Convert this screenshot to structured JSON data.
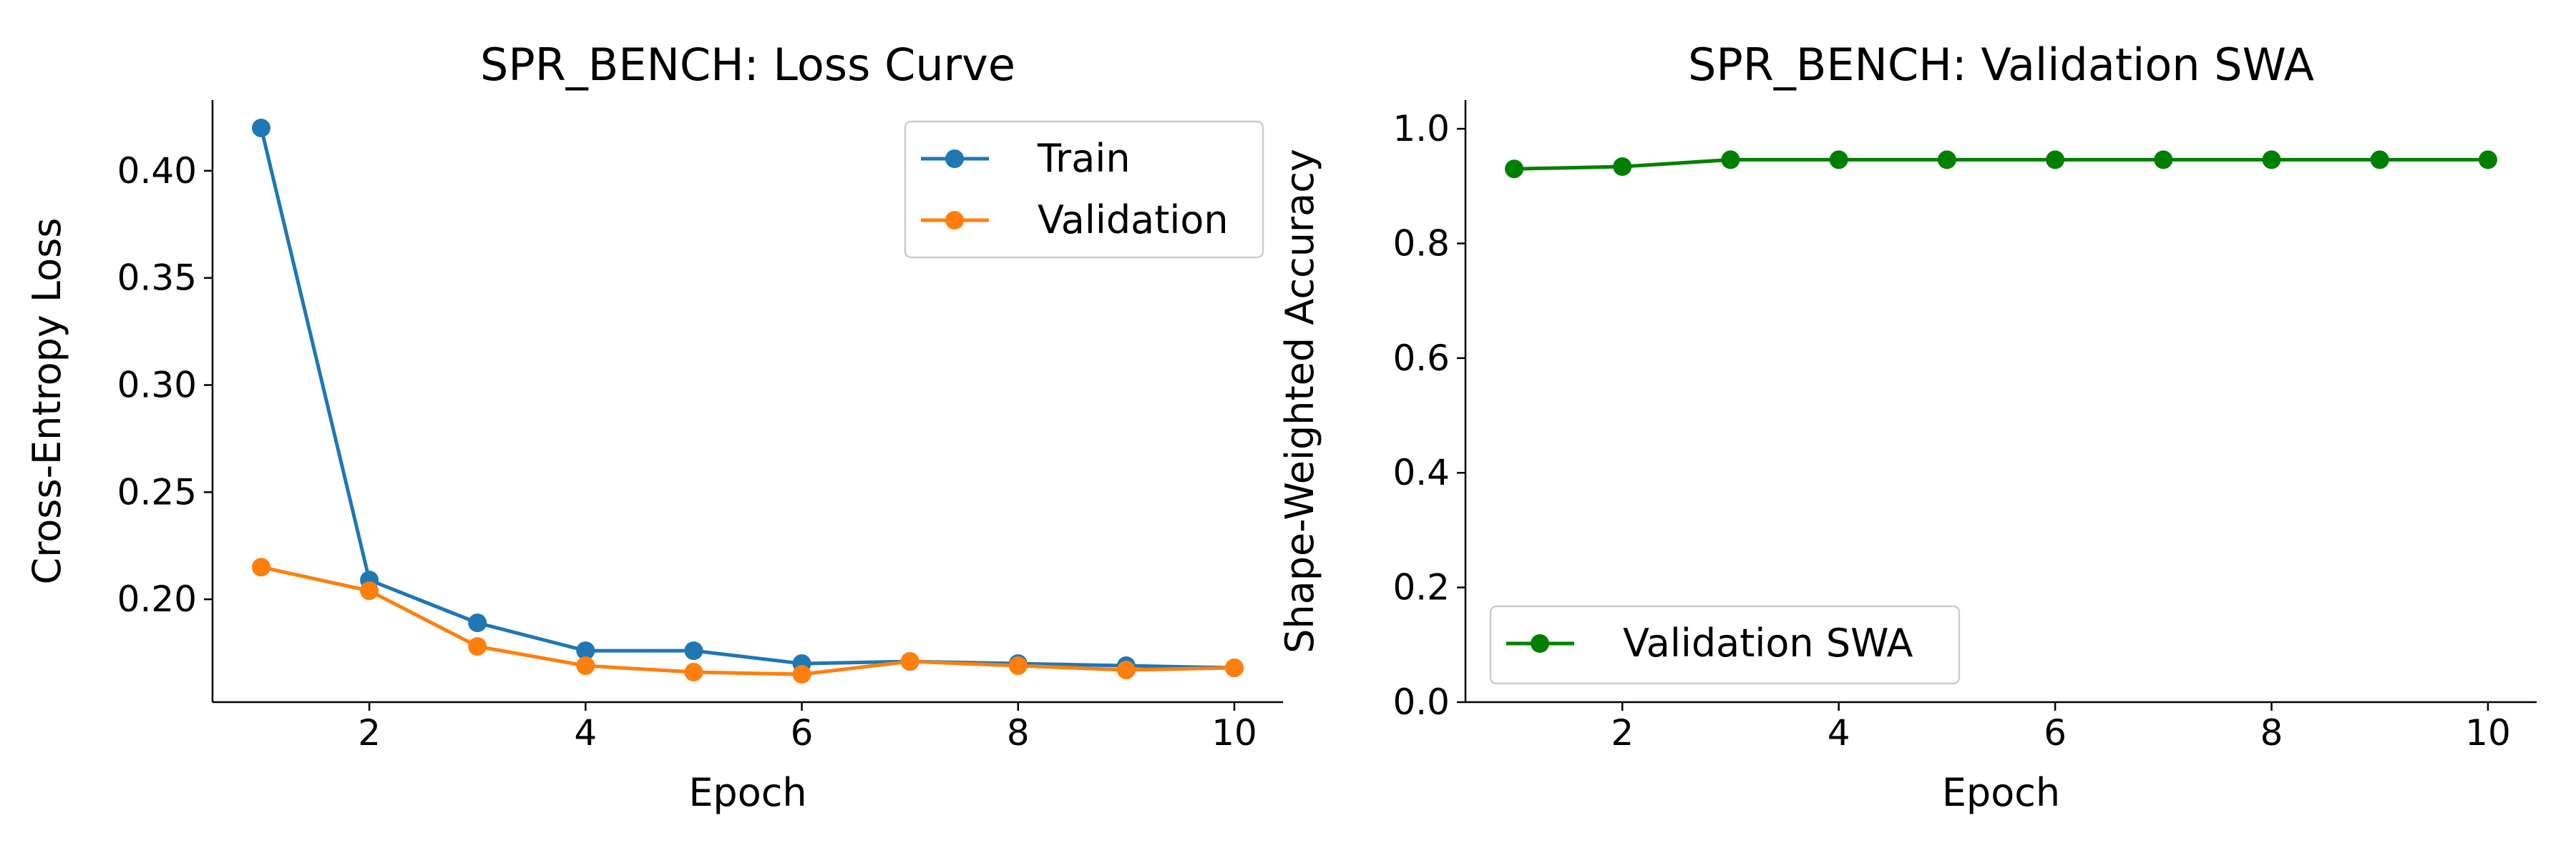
{
  "chart_data": [
    {
      "type": "line",
      "title": "SPR_BENCH: Loss Curve",
      "xlabel": "Epoch",
      "ylabel": "Cross-Entropy Loss",
      "xlim": [
        0.55,
        10.45
      ],
      "ylim": [
        0.152,
        0.433
      ],
      "xticks": [
        2,
        4,
        6,
        8,
        10
      ],
      "xtick_labels": [
        "2",
        "4",
        "6",
        "8",
        "10"
      ],
      "yticks": [
        0.2,
        0.25,
        0.3,
        0.35,
        0.4
      ],
      "ytick_labels": [
        "0.20",
        "0.25",
        "0.30",
        "0.35",
        "0.40"
      ],
      "grid": false,
      "legend_position": "upper right",
      "x": [
        1,
        2,
        3,
        4,
        5,
        6,
        7,
        8,
        9,
        10
      ],
      "series": [
        {
          "name": "Train",
          "color": "#1f77b4",
          "values": [
            0.42,
            0.209,
            0.189,
            0.176,
            0.176,
            0.17,
            0.171,
            0.17,
            0.169,
            0.168
          ]
        },
        {
          "name": "Validation",
          "color": "#ff7f0e",
          "values": [
            0.215,
            0.204,
            0.178,
            0.169,
            0.166,
            0.165,
            0.171,
            0.169,
            0.167,
            0.168
          ]
        }
      ]
    },
    {
      "type": "line",
      "title": "SPR_BENCH: Validation SWA",
      "xlabel": "Epoch",
      "ylabel": "Shape-Weighted Accuracy",
      "xlim": [
        0.55,
        10.45
      ],
      "ylim": [
        0.0,
        1.05
      ],
      "xticks": [
        2,
        4,
        6,
        8,
        10
      ],
      "xtick_labels": [
        "2",
        "4",
        "6",
        "8",
        "10"
      ],
      "yticks": [
        0.0,
        0.2,
        0.4,
        0.6,
        0.8,
        1.0
      ],
      "ytick_labels": [
        "0.0",
        "0.2",
        "0.4",
        "0.6",
        "0.8",
        "1.0"
      ],
      "grid": false,
      "legend_position": "lower left",
      "x": [
        1,
        2,
        3,
        4,
        5,
        6,
        7,
        8,
        9,
        10
      ],
      "series": [
        {
          "name": "Validation SWA",
          "color": "#008000",
          "values": [
            0.93,
            0.934,
            0.946,
            0.946,
            0.946,
            0.946,
            0.946,
            0.946,
            0.946,
            0.946
          ]
        }
      ]
    }
  ]
}
